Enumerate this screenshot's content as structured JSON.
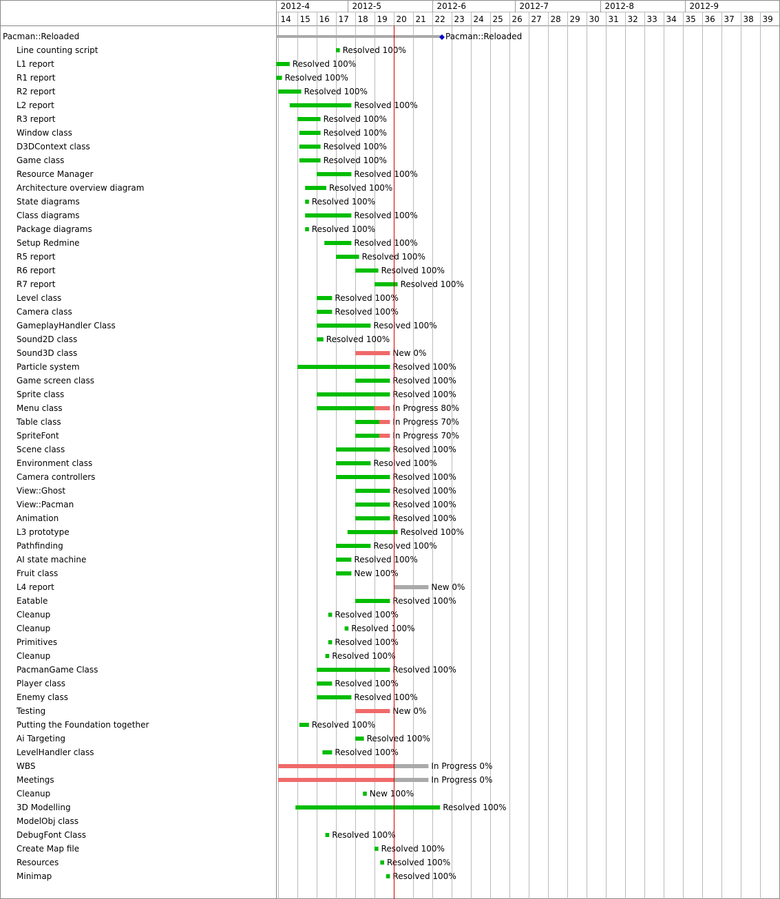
{
  "chart_data": {
    "type": "gantt",
    "x_unit": "week",
    "months": [
      {
        "label": "2012-4",
        "from": 13.9,
        "to": 17.6
      },
      {
        "label": "2012-5",
        "from": 17.6,
        "to": 22.0
      },
      {
        "label": "2012-6",
        "from": 22.0,
        "to": 26.3
      },
      {
        "label": "2012-7",
        "from": 26.3,
        "to": 30.7
      },
      {
        "label": "2012-8",
        "from": 30.7,
        "to": 35.1
      },
      {
        "label": "2012-9",
        "from": 35.1,
        "to": 39.4
      }
    ],
    "weeks": [
      "14",
      "15",
      "16",
      "17",
      "18",
      "19",
      "20",
      "21",
      "22",
      "23",
      "24",
      "25",
      "26",
      "27",
      "28",
      "29",
      "30",
      "31",
      "32",
      "33",
      "34",
      "35",
      "36",
      "37",
      "38",
      "39"
    ],
    "week_start": 14,
    "today": 20.0,
    "colors": {
      "done": "#00bd00",
      "late": "#f06a6a",
      "todo": "#aaaaaa",
      "today": "#cc0000",
      "milestone": "#0000cc",
      "grid": "#bbbbbb"
    },
    "project": {
      "name": "Pacman::Reloaded",
      "start": 13.9,
      "end": 22.5,
      "label": "Pacman::Reloaded"
    },
    "tasks": [
      {
        "name": "Line counting script",
        "start": 17.0,
        "end": 17.2,
        "done": 17.2,
        "label": "Resolved 100%"
      },
      {
        "name": "L1 report",
        "start": 13.9,
        "end": 14.6,
        "done": 14.6,
        "label": "Resolved 100%"
      },
      {
        "name": "R1 report",
        "start": 13.9,
        "end": 14.2,
        "done": 14.2,
        "label": "Resolved 100%"
      },
      {
        "name": "R2 report",
        "start": 14.0,
        "end": 15.2,
        "done": 15.2,
        "label": "Resolved 100%"
      },
      {
        "name": "L2 report",
        "start": 14.6,
        "end": 17.8,
        "done": 17.8,
        "label": "Resolved 100%"
      },
      {
        "name": "R3 report",
        "start": 15.0,
        "end": 16.2,
        "done": 16.2,
        "label": "Resolved 100%"
      },
      {
        "name": "Window class",
        "start": 15.1,
        "end": 16.2,
        "done": 16.2,
        "label": "Resolved 100%"
      },
      {
        "name": "D3DContext class",
        "start": 15.1,
        "end": 16.2,
        "done": 16.2,
        "label": "Resolved 100%"
      },
      {
        "name": "Game class",
        "start": 15.1,
        "end": 16.2,
        "done": 16.2,
        "label": "Resolved 100%"
      },
      {
        "name": "Resource Manager",
        "start": 16.0,
        "end": 17.8,
        "done": 17.8,
        "label": "Resolved 100%"
      },
      {
        "name": "Architecture overview diagram",
        "start": 15.4,
        "end": 16.5,
        "done": 16.5,
        "label": "Resolved 100%"
      },
      {
        "name": "State diagrams",
        "start": 15.4,
        "end": 15.6,
        "done": 15.6,
        "label": "Resolved 100%"
      },
      {
        "name": "Class diagrams",
        "start": 15.4,
        "end": 17.8,
        "done": 17.8,
        "label": "Resolved 100%"
      },
      {
        "name": "Package diagrams",
        "start": 15.4,
        "end": 15.6,
        "done": 15.6,
        "label": "Resolved 100%"
      },
      {
        "name": "Setup Redmine",
        "start": 16.4,
        "end": 17.8,
        "done": 17.8,
        "label": "Resolved 100%"
      },
      {
        "name": "R5 report",
        "start": 17.0,
        "end": 18.2,
        "done": 18.2,
        "label": "Resolved 100%"
      },
      {
        "name": "R6 report",
        "start": 18.0,
        "end": 19.2,
        "done": 19.2,
        "label": "Resolved 100%"
      },
      {
        "name": "R7 report",
        "start": 19.0,
        "end": 20.2,
        "done": 20.2,
        "label": "Resolved 100%"
      },
      {
        "name": "Level class",
        "start": 16.0,
        "end": 16.8,
        "done": 16.8,
        "label": "Resolved 100%"
      },
      {
        "name": "Camera class",
        "start": 16.0,
        "end": 16.8,
        "done": 16.8,
        "label": "Resolved 100%"
      },
      {
        "name": "GameplayHandler Class",
        "start": 16.0,
        "end": 18.8,
        "done": 18.8,
        "label": "Resolved 100%"
      },
      {
        "name": "Sound2D class",
        "start": 16.0,
        "end": 16.35,
        "done": 16.35,
        "label": "Resolved 100%"
      },
      {
        "name": "Sound3D class",
        "start": 18.0,
        "end": 19.8,
        "done": 18.0,
        "label": "New 0%"
      },
      {
        "name": "Particle system",
        "start": 15.0,
        "end": 19.8,
        "done": 19.8,
        "label": "Resolved 100%"
      },
      {
        "name": "Game screen class",
        "start": 18.0,
        "end": 19.8,
        "done": 19.8,
        "label": "Resolved 100%"
      },
      {
        "name": "Sprite class",
        "start": 16.0,
        "end": 19.8,
        "done": 19.8,
        "label": "Resolved 100%"
      },
      {
        "name": "Menu class",
        "start": 16.0,
        "end": 19.8,
        "done": 19.0,
        "label": "In Progress 80%"
      },
      {
        "name": "Table class",
        "start": 18.0,
        "end": 19.8,
        "done": 19.25,
        "label": "In Progress 70%"
      },
      {
        "name": "SpriteFont",
        "start": 18.0,
        "end": 19.8,
        "done": 19.25,
        "label": "In Progress 70%"
      },
      {
        "name": "Scene class",
        "start": 17.0,
        "end": 19.8,
        "done": 19.8,
        "label": "Resolved 100%"
      },
      {
        "name": "Environment class",
        "start": 17.0,
        "end": 18.8,
        "done": 18.8,
        "label": "Resolved 100%"
      },
      {
        "name": "Camera controllers",
        "start": 17.0,
        "end": 19.8,
        "done": 19.8,
        "label": "Resolved 100%"
      },
      {
        "name": "View::Ghost",
        "start": 18.0,
        "end": 19.8,
        "done": 19.8,
        "label": "Resolved 100%"
      },
      {
        "name": "View::Pacman",
        "start": 18.0,
        "end": 19.8,
        "done": 19.8,
        "label": "Resolved 100%"
      },
      {
        "name": "Animation",
        "start": 18.0,
        "end": 19.8,
        "done": 19.8,
        "label": "Resolved 100%"
      },
      {
        "name": "L3 prototype",
        "start": 17.6,
        "end": 20.2,
        "done": 20.2,
        "label": "Resolved 100%"
      },
      {
        "name": "Pathfinding",
        "start": 17.0,
        "end": 18.8,
        "done": 18.8,
        "label": "Resolved 100%"
      },
      {
        "name": "AI state machine",
        "start": 17.0,
        "end": 17.8,
        "done": 17.8,
        "label": "Resolved 100%"
      },
      {
        "name": "Fruit class",
        "start": 17.0,
        "end": 17.8,
        "done": 17.8,
        "label": "New 100%"
      },
      {
        "name": "L4 report",
        "start": 20.0,
        "end": 21.8,
        "done": 20.0,
        "label": "New 0%"
      },
      {
        "name": "Eatable",
        "start": 18.0,
        "end": 19.8,
        "done": 19.8,
        "label": "Resolved 100%"
      },
      {
        "name": "Cleanup",
        "start": 16.6,
        "end": 16.8,
        "done": 16.8,
        "label": "Resolved 100%"
      },
      {
        "name": "Cleanup",
        "start": 17.45,
        "end": 17.65,
        "done": 17.65,
        "label": "Resolved 100%"
      },
      {
        "name": "Primitives",
        "start": 16.6,
        "end": 16.8,
        "done": 16.8,
        "label": "Resolved 100%"
      },
      {
        "name": "Cleanup",
        "start": 16.45,
        "end": 16.65,
        "done": 16.65,
        "label": "Resolved 100%"
      },
      {
        "name": "PacmanGame Class",
        "start": 16.0,
        "end": 19.8,
        "done": 19.8,
        "label": "Resolved 100%"
      },
      {
        "name": "Player class",
        "start": 16.0,
        "end": 16.8,
        "done": 16.8,
        "label": "Resolved 100%"
      },
      {
        "name": "Enemy class",
        "start": 16.0,
        "end": 17.8,
        "done": 17.8,
        "label": "Resolved 100%"
      },
      {
        "name": "Testing",
        "start": 18.0,
        "end": 19.8,
        "done": 18.0,
        "label": "New 0%"
      },
      {
        "name": "Putting the Foundation together",
        "start": 15.1,
        "end": 15.6,
        "done": 15.6,
        "label": "Resolved 100%"
      },
      {
        "name": "Ai Targeting",
        "start": 18.0,
        "end": 18.45,
        "done": 18.45,
        "label": "Resolved 100%"
      },
      {
        "name": "LevelHandler class",
        "start": 16.3,
        "end": 16.8,
        "done": 16.8,
        "label": "Resolved 100%"
      },
      {
        "name": "WBS",
        "start": 14.0,
        "end": 21.8,
        "done": 14.0,
        "label": "In Progress 0%"
      },
      {
        "name": "Meetings",
        "start": 14.0,
        "end": 21.8,
        "done": 14.0,
        "label": "In Progress 0%"
      },
      {
        "name": "Cleanup",
        "start": 18.4,
        "end": 18.6,
        "done": 18.6,
        "label": "New 100%"
      },
      {
        "name": "3D Modelling",
        "start": 14.9,
        "end": 22.4,
        "done": 22.4,
        "label": "Resolved 100%"
      },
      {
        "name": "ModelObj class",
        "start": null,
        "end": null,
        "done": null,
        "label": ""
      },
      {
        "name": "DebugFont Class",
        "start": 16.45,
        "end": 16.65,
        "done": 16.65,
        "label": "Resolved 100%"
      },
      {
        "name": "Create Map file",
        "start": 19.0,
        "end": 19.2,
        "done": 19.2,
        "label": "Resolved 100%"
      },
      {
        "name": "Resources",
        "start": 19.3,
        "end": 19.5,
        "done": 19.5,
        "label": "Resolved 100%"
      },
      {
        "name": "Minimap",
        "start": 19.6,
        "end": 19.8,
        "done": 19.8,
        "label": "Resolved 100%"
      }
    ]
  }
}
